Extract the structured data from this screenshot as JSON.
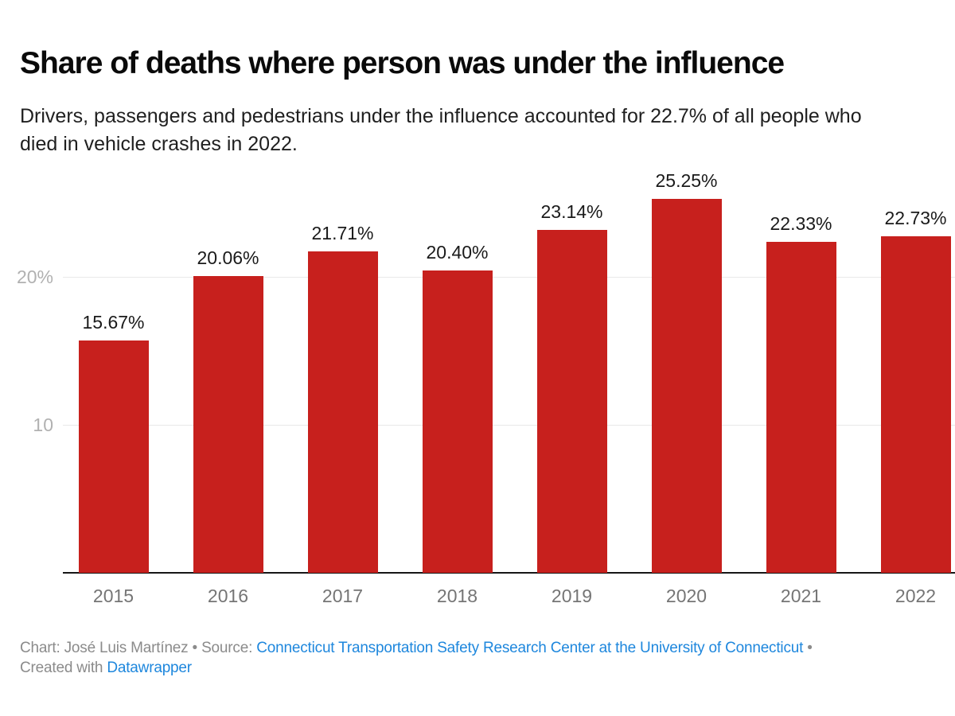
{
  "header": {
    "title": "Share of deaths where person was under the influence",
    "subtitle": "Drivers, passengers and pedestrians under the influence accounted for 22.7% of all people who died in vehicle crashes in 2022.",
    "subtitle_lines": [
      "Drivers, passengers and pedestrians under the influence accounted for 22.7% of all people who",
      "died in vehicle crashes in 2022."
    ]
  },
  "chart_data": {
    "type": "bar",
    "title": "Share of deaths where person was under the influence",
    "subtitle": "Drivers, passengers and pedestrians under the influence accounted for 22.7% of all people who died in vehicle crashes in 2022.",
    "categories": [
      "2015",
      "2016",
      "2017",
      "2018",
      "2019",
      "2020",
      "2021",
      "2022"
    ],
    "values": [
      15.67,
      20.06,
      21.71,
      20.4,
      23.14,
      25.25,
      22.33,
      22.73
    ],
    "value_labels": [
      "15.67%",
      "20.06%",
      "21.71%",
      "20.40%",
      "23.14%",
      "25.25%",
      "22.33%",
      "22.73%"
    ],
    "xlabel": "",
    "ylabel": "",
    "ylim": [
      0,
      27.5
    ],
    "y_ticks": [
      {
        "value": 10,
        "label": "10"
      },
      {
        "value": 20,
        "label": "20%"
      }
    ],
    "grid": "horizontal",
    "legend": "none",
    "bar_color": "#c7201d"
  },
  "footer": {
    "chart_credit": "Chart: José Luis Martínez • Source: ",
    "source_link": "Connecticut Transportation Safety Research Center at the University of Connecticut",
    "source_suffix": " •",
    "created_with": "Created with ",
    "creator_link": "Datawrapper"
  },
  "colors": {
    "bar": "#c7201d",
    "link": "#1e87dd",
    "axis_line": "#161616",
    "gridline": "#e9e9e9",
    "y_tick_text": "#b1b1b1",
    "x_tick_text": "#757575",
    "footer_text": "#8b8b8b"
  }
}
